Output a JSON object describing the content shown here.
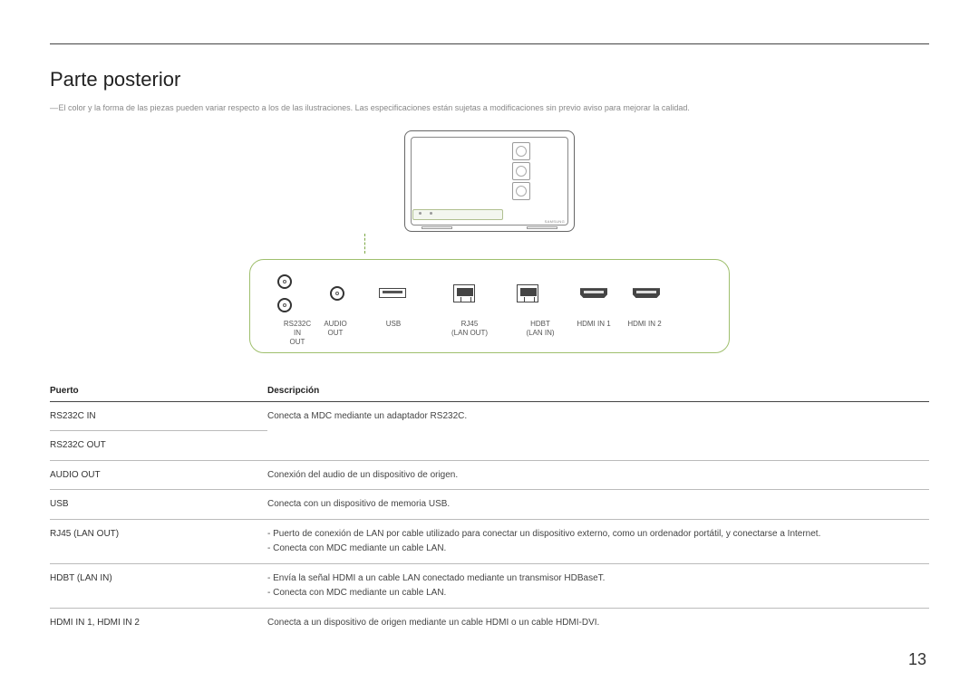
{
  "heading": "Parte posterior",
  "disclaimer": "El color y la forma de las piezas pueden variar respecto a los de las ilustraciones. Las especificaciones están sujetas a modificaciones sin previo aviso para mejorar la calidad.",
  "diagram": {
    "brand": "SAMSUNG",
    "port_labels": {
      "rs232c": "RS232C\nIN\nOUT",
      "audio_out": "AUDIO\nOUT",
      "usb": "USB",
      "rj45": "RJ45\n(LAN OUT)",
      "hdbt": "HDBT\n(LAN IN)",
      "hdmi1": "HDMI IN 1",
      "hdmi2": "HDMI IN 2"
    }
  },
  "table": {
    "headers": {
      "port": "Puerto",
      "desc": "Descripción"
    },
    "rows": [
      {
        "port": "RS232C IN",
        "desc": "Conecta a MDC mediante un adaptador RS232C."
      },
      {
        "port": "RS232C OUT",
        "desc": ""
      },
      {
        "port": "AUDIO OUT",
        "desc": "Conexión del audio de un dispositivo de origen."
      },
      {
        "port": "USB",
        "desc": "Conecta con un dispositivo de memoria USB."
      },
      {
        "port": "RJ45 (LAN OUT)",
        "desc": "- Puerto de conexión de LAN por cable utilizado para conectar un dispositivo externo, como un ordenador portátil, y conectarse a Internet.\n- Conecta con MDC mediante un cable LAN."
      },
      {
        "port": "HDBT (LAN IN)",
        "desc": "- Envía la señal HDMI a un cable LAN conectado mediante un transmisor HDBaseT.\n- Conecta con MDC mediante un cable LAN."
      },
      {
        "port": "HDMI IN 1, HDMI IN 2",
        "desc": "Conecta a un dispositivo de origen mediante un cable HDMI o un cable HDMI-DVI."
      }
    ]
  },
  "page_number": "13"
}
